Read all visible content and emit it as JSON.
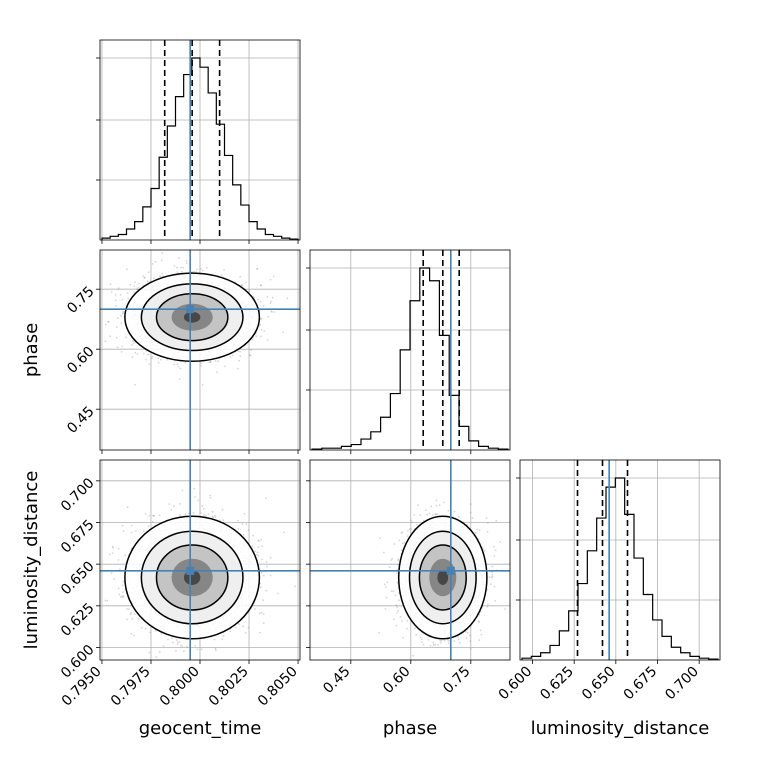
{
  "chart_data": {
    "type": "corner",
    "parameters": [
      "geocent_time",
      "phase",
      "luminosity_distance"
    ],
    "axis_labels": {
      "geocent_time": "geocent_time",
      "phase": "phase",
      "luminosity_distance": "luminosity_distance"
    },
    "ranges": {
      "geocent_time": [
        0.7949,
        0.8051
      ],
      "phase": [
        0.348,
        0.848
      ],
      "luminosity_distance": [
        0.5925,
        0.7125
      ]
    },
    "ticks": {
      "geocent_time": [
        "0.7950",
        "0.7975",
        "0.8000",
        "0.8025",
        "0.8050"
      ],
      "phase": [
        "0.45",
        "0.60",
        "0.75"
      ],
      "luminosity_distance": [
        "0.600",
        "0.625",
        "0.650",
        "0.675",
        "0.700"
      ]
    },
    "truths": {
      "geocent_time": 0.7995,
      "phase": 0.7,
      "luminosity_distance": 0.646
    },
    "quantiles": {
      "geocent_time": [
        0.7982,
        0.7996,
        0.801
      ],
      "phase": [
        0.631,
        0.68,
        0.721
      ],
      "luminosity_distance": [
        0.627,
        0.642,
        0.657
      ]
    },
    "histograms": {
      "geocent_time": [
        1,
        2,
        3,
        6,
        10,
        18,
        28,
        45,
        62,
        78,
        90,
        99,
        94,
        80,
        63,
        46,
        30,
        19,
        10,
        6,
        3,
        2,
        1,
        0.5
      ],
      "phase": [
        0.5,
        1,
        1,
        2,
        3,
        6,
        10,
        18,
        31,
        55,
        82,
        100,
        93,
        63,
        30,
        13,
        5,
        2,
        1,
        0.5
      ],
      "luminosity_distance": [
        1,
        2,
        4,
        8,
        16,
        27,
        42,
        60,
        78,
        95,
        100,
        80,
        56,
        36,
        22,
        13,
        7,
        4,
        2,
        1,
        0.5
      ]
    },
    "hist_ymax_fraction": 0.91,
    "hist_grid_fractions": [
      0.3,
      0.6,
      0.91
    ],
    "colors": {
      "truth": "#4682b4",
      "contour": "#000000",
      "scatter": "#8a8a8a",
      "grid": "#b0b0b0"
    },
    "grid": true
  }
}
